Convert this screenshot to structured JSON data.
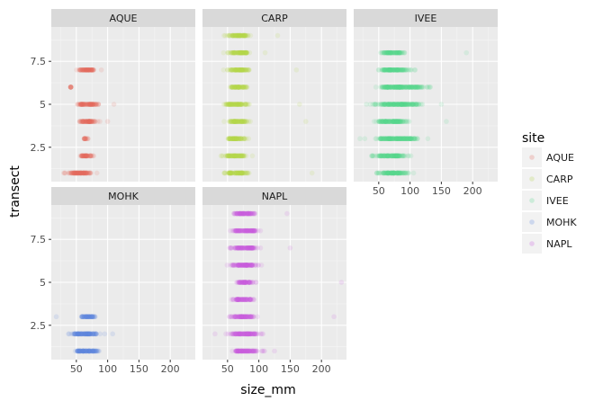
{
  "chart_data": {
    "type": "scatter",
    "facet_var": "site",
    "xlabel": "size_mm",
    "ylabel": "transect",
    "xlim": [
      10,
      240
    ],
    "ylim": [
      0.5,
      9.5
    ],
    "x_ticks": [
      50,
      100,
      150,
      200
    ],
    "x_tick_labels": [
      "50",
      "100",
      "150",
      "200"
    ],
    "y_ticks": [
      2.5,
      5,
      7.5
    ],
    "y_tick_labels": [
      "2.5",
      "5",
      "7.5"
    ],
    "grid": true,
    "point_alpha": 0.15,
    "legend": {
      "title": "site",
      "placement": "right",
      "entries": [
        "AQUE",
        "CARP",
        "IVEE",
        "MOHK",
        "NAPL"
      ]
    },
    "colors": {
      "AQUE": "#e36a60",
      "CARP": "#b5d54a",
      "IVEE": "#5ad98e",
      "MOHK": "#5b86e0",
      "NAPL": "#c95bdf"
    },
    "panels": [
      {
        "site": "AQUE",
        "transects": [
          {
            "y": 1,
            "min": 25,
            "max": 88
          },
          {
            "y": 2,
            "min": 50,
            "max": 82
          },
          {
            "y": 3,
            "min": 60,
            "max": 70
          },
          {
            "y": 4,
            "min": 48,
            "max": 92
          },
          {
            "y": 5,
            "min": 42,
            "max": 96
          },
          {
            "y": 6,
            "min": 40,
            "max": 42
          },
          {
            "y": 7,
            "min": 45,
            "max": 88
          }
        ],
        "outliers": [
          {
            "x": 110,
            "y": 5
          },
          {
            "x": 100,
            "y": 4
          },
          {
            "x": 90,
            "y": 7
          },
          {
            "x": 30,
            "y": 1
          }
        ]
      },
      {
        "site": "CARP",
        "transects": [
          {
            "y": 1,
            "min": 35,
            "max": 95
          },
          {
            "y": 2,
            "min": 35,
            "max": 92
          },
          {
            "y": 3,
            "min": 40,
            "max": 90
          },
          {
            "y": 4,
            "min": 40,
            "max": 92
          },
          {
            "y": 5,
            "min": 35,
            "max": 95
          },
          {
            "y": 6,
            "min": 45,
            "max": 90
          },
          {
            "y": 7,
            "min": 40,
            "max": 95
          },
          {
            "y": 8,
            "min": 40,
            "max": 98
          },
          {
            "y": 9,
            "min": 40,
            "max": 95
          }
        ],
        "outliers": [
          {
            "x": 185,
            "y": 1
          },
          {
            "x": 175,
            "y": 4
          },
          {
            "x": 165,
            "y": 5
          },
          {
            "x": 160,
            "y": 7
          },
          {
            "x": 130,
            "y": 9
          },
          {
            "x": 110,
            "y": 8
          }
        ]
      },
      {
        "site": "IVEE",
        "transects": [
          {
            "y": 1,
            "min": 35,
            "max": 110
          },
          {
            "y": 2,
            "min": 30,
            "max": 110
          },
          {
            "y": 3,
            "min": 25,
            "max": 135
          },
          {
            "y": 4,
            "min": 30,
            "max": 110
          },
          {
            "y": 5,
            "min": 25,
            "max": 140
          },
          {
            "y": 6,
            "min": 25,
            "max": 150
          },
          {
            "y": 7,
            "min": 35,
            "max": 115
          },
          {
            "y": 8,
            "min": 45,
            "max": 100
          }
        ],
        "outliers": [
          {
            "x": 190,
            "y": 8
          },
          {
            "x": 158,
            "y": 4
          },
          {
            "x": 150,
            "y": 5
          },
          {
            "x": 130,
            "y": 6
          },
          {
            "x": 20,
            "y": 3
          }
        ]
      },
      {
        "site": "MOHK",
        "transects": [
          {
            "y": 1,
            "min": 35,
            "max": 100
          },
          {
            "y": 2,
            "min": 28,
            "max": 100
          },
          {
            "y": 3,
            "min": 50,
            "max": 85
          }
        ],
        "outliers": [
          {
            "x": 18,
            "y": 3
          },
          {
            "x": 108,
            "y": 2
          }
        ]
      },
      {
        "site": "NAPL",
        "transects": [
          {
            "y": 1,
            "min": 45,
            "max": 115
          },
          {
            "y": 2,
            "min": 40,
            "max": 115
          },
          {
            "y": 3,
            "min": 45,
            "max": 105
          },
          {
            "y": 4,
            "min": 50,
            "max": 100
          },
          {
            "y": 5,
            "min": 55,
            "max": 100
          },
          {
            "y": 6,
            "min": 40,
            "max": 110
          },
          {
            "y": 7,
            "min": 45,
            "max": 110
          },
          {
            "y": 8,
            "min": 45,
            "max": 110
          },
          {
            "y": 9,
            "min": 50,
            "max": 105
          }
        ],
        "outliers": [
          {
            "x": 232,
            "y": 5
          },
          {
            "x": 220,
            "y": 3
          },
          {
            "x": 145,
            "y": 9
          },
          {
            "x": 150,
            "y": 7
          },
          {
            "x": 125,
            "y": 1
          },
          {
            "x": 30,
            "y": 2
          }
        ]
      }
    ]
  }
}
